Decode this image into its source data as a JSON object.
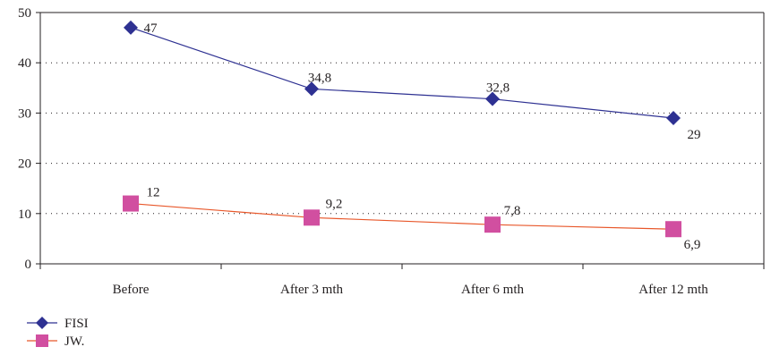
{
  "chart_data": {
    "type": "line",
    "title": "",
    "xlabel": "",
    "ylabel": "",
    "categories": [
      "Before",
      "After 3 mth",
      "After 6 mth",
      "After 12 mth"
    ],
    "ylim": [
      0,
      50
    ],
    "yticks": [
      0,
      10,
      20,
      30,
      40,
      50
    ],
    "ytick_labels": [
      "0",
      "10",
      "20",
      "30",
      "40",
      "50"
    ],
    "grid": "horizontal-dotted",
    "legend": "bottom-left",
    "series": [
      {
        "name": "FISI",
        "values": [
          47,
          34.8,
          32.8,
          29
        ],
        "labels": [
          "47",
          "34,8",
          "32,8",
          "29"
        ],
        "color": "#2e3192",
        "marker": "diamond"
      },
      {
        "name": "JW.",
        "values": [
          12,
          9.2,
          7.8,
          6.9
        ],
        "labels": [
          "12",
          "9,2",
          "7,8",
          "6,9"
        ],
        "color": "#d14fa0",
        "line_color": "#e8572a",
        "marker": "square"
      }
    ]
  }
}
